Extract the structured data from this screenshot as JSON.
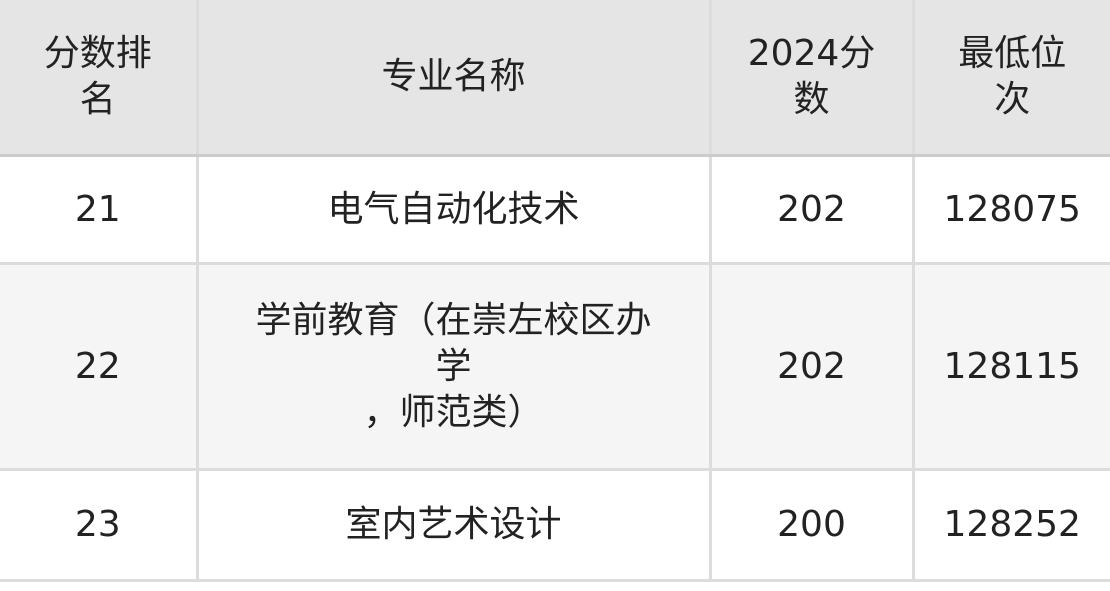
{
  "table": {
    "headers": [
      "分数排名",
      "专业名称",
      "2024分数",
      "最低位次"
    ],
    "rows": [
      {
        "rank": "21",
        "major": [
          "电气自动化技术"
        ],
        "score": "202",
        "position": "128075"
      },
      {
        "rank": "22",
        "major": [
          "学前教育（在崇左校区办",
          "学",
          "，师范类）"
        ],
        "score": "202",
        "position": "128115"
      },
      {
        "rank": "23",
        "major": [
          "室内艺术设计"
        ],
        "score": "200",
        "position": "128252"
      }
    ]
  },
  "colors": {
    "header_bg": "#e5e5e5",
    "alt_row_bg": "#f5f5f5",
    "border": "#dcdcdc"
  }
}
